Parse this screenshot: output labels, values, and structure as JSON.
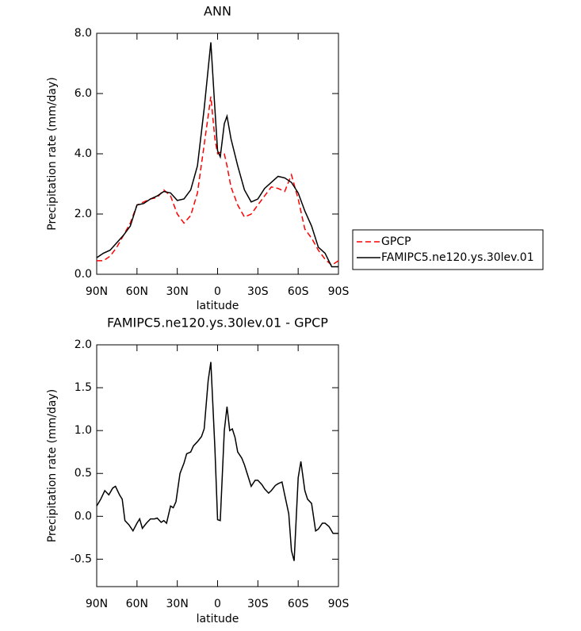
{
  "chart_data": [
    {
      "type": "line",
      "title": "ANN",
      "xlabel": "latitude",
      "ylabel": "Precipitation rate (mm/day)",
      "x": [
        90,
        85,
        80,
        75,
        70,
        65,
        60,
        55,
        50,
        45,
        40,
        35,
        30,
        25,
        20,
        15,
        10,
        5,
        2,
        0,
        -2,
        -5,
        -7,
        -10,
        -15,
        -20,
        -25,
        -30,
        -35,
        -40,
        -45,
        -50,
        -55,
        -60,
        -65,
        -70,
        -75,
        -80,
        -85,
        -90
      ],
      "series": [
        {
          "name": "GPCP",
          "color": "#ff0000",
          "dashed": true,
          "values": [
            0.45,
            0.45,
            0.6,
            0.9,
            1.3,
            1.7,
            2.3,
            2.4,
            2.5,
            2.55,
            2.8,
            2.6,
            2.0,
            1.7,
            1.95,
            2.7,
            4.3,
            5.9,
            4.5,
            4.0,
            4.05,
            4.0,
            3.6,
            2.9,
            2.3,
            1.9,
            2.0,
            2.3,
            2.6,
            2.9,
            2.85,
            2.75,
            3.3,
            2.5,
            1.5,
            1.2,
            0.8,
            0.5,
            0.3,
            0.45
          ]
        },
        {
          "name": "FAMIPC5.ne120.ys.30lev.01",
          "color": "#000000",
          "dashed": false,
          "values": [
            0.55,
            0.7,
            0.8,
            1.05,
            1.3,
            1.6,
            2.3,
            2.35,
            2.5,
            2.6,
            2.75,
            2.7,
            2.45,
            2.5,
            2.8,
            3.6,
            5.5,
            7.7,
            5.5,
            4.1,
            3.9,
            5.0,
            5.25,
            4.5,
            3.6,
            2.8,
            2.4,
            2.5,
            2.85,
            3.05,
            3.25,
            3.2,
            3.05,
            2.7,
            2.1,
            1.6,
            0.9,
            0.7,
            0.25,
            0.25
          ]
        }
      ],
      "xlim": [
        90,
        -90
      ],
      "xticks": [
        {
          "value": 90,
          "label": "90N"
        },
        {
          "value": 60,
          "label": "60N"
        },
        {
          "value": 30,
          "label": "30N"
        },
        0,
        {
          "value": -30,
          "label": "30S"
        },
        {
          "value": -60,
          "label": "60S"
        },
        {
          "value": -90,
          "label": "90S"
        }
      ],
      "ylim": [
        0,
        8
      ],
      "yticks": [
        {
          "value": 0,
          "label": "0.0"
        },
        {
          "value": 2,
          "label": "2.0"
        },
        {
          "value": 4,
          "label": "4.0"
        },
        {
          "value": 6,
          "label": "6.0"
        },
        {
          "value": 8,
          "label": "8.0"
        }
      ],
      "legend": "right"
    },
    {
      "type": "line",
      "title": "FAMIPC5.ne120.ys.30lev.01 - GPCP",
      "xlabel": "latitude",
      "ylabel": "Precipitation rate (mm/day)",
      "x": [
        90,
        87,
        84,
        81,
        78,
        76,
        73,
        71,
        69,
        66,
        63,
        60,
        58,
        56,
        53,
        50,
        47,
        45,
        42,
        40,
        38,
        35,
        33,
        31,
        28,
        25,
        23,
        20,
        18,
        15,
        12,
        10,
        7,
        5,
        2,
        0,
        -2,
        -5,
        -7,
        -9,
        -11,
        -13,
        -15,
        -18,
        -20,
        -23,
        -25,
        -28,
        -30,
        -33,
        -35,
        -38,
        -40,
        -43,
        -45,
        -48,
        -50,
        -53,
        -55,
        -57,
        -60,
        -62,
        -65,
        -67,
        -70,
        -73,
        -75,
        -78,
        -80,
        -83,
        -86,
        -90
      ],
      "series": [
        {
          "name": "FAMIPC5.ne120.ys.30lev.01 - GPCP",
          "color": "#000000",
          "dashed": false,
          "values": [
            0.12,
            0.2,
            0.3,
            0.25,
            0.33,
            0.35,
            0.25,
            0.2,
            -0.05,
            -0.1,
            -0.17,
            -0.08,
            -0.03,
            -0.14,
            -0.08,
            -0.03,
            -0.03,
            -0.02,
            -0.07,
            -0.05,
            -0.08,
            0.12,
            0.1,
            0.17,
            0.5,
            0.62,
            0.73,
            0.75,
            0.82,
            0.87,
            0.93,
            1.02,
            1.58,
            1.8,
            0.8,
            -0.04,
            -0.05,
            1.0,
            1.28,
            1.0,
            1.02,
            0.92,
            0.75,
            0.68,
            0.6,
            0.45,
            0.35,
            0.42,
            0.42,
            0.37,
            0.32,
            0.27,
            0.3,
            0.36,
            0.38,
            0.4,
            0.25,
            0.03,
            -0.4,
            -0.52,
            0.45,
            0.64,
            0.3,
            0.2,
            0.15,
            -0.17,
            -0.15,
            -0.08,
            -0.08,
            -0.12,
            -0.2,
            -0.2
          ]
        }
      ],
      "xlim": [
        90,
        -90
      ],
      "xticks": [
        {
          "value": 90,
          "label": "90N"
        },
        {
          "value": 60,
          "label": "60N"
        },
        {
          "value": 30,
          "label": "30N"
        },
        0,
        {
          "value": -30,
          "label": "30S"
        },
        {
          "value": -60,
          "label": "60S"
        },
        {
          "value": -90,
          "label": "90S"
        }
      ],
      "ylim": [
        -0.82,
        2.0
      ],
      "yticks": [
        {
          "value": -0.5,
          "label": "-0.5"
        },
        {
          "value": 0,
          "label": "0.0"
        },
        {
          "value": 0.5,
          "label": "0.5"
        },
        {
          "value": 1,
          "label": "1.0"
        },
        {
          "value": 1.5,
          "label": "1.5"
        },
        {
          "value": 2,
          "label": "2.0"
        }
      ]
    }
  ]
}
